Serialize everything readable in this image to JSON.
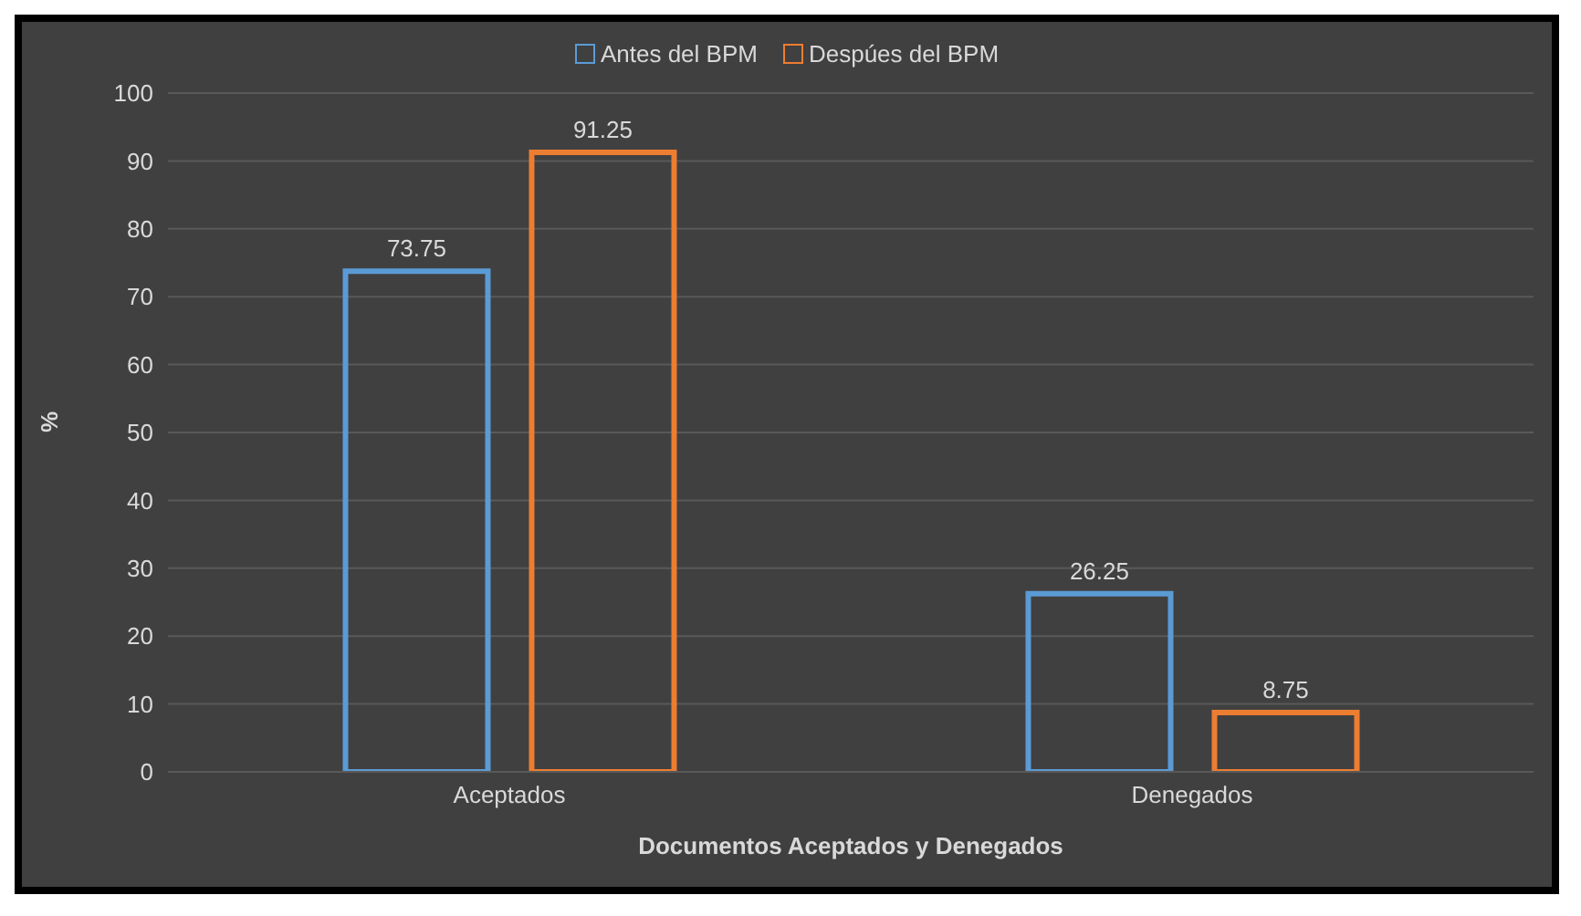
{
  "chart_data": {
    "type": "bar",
    "xlabel": "Documentos Aceptados y Denegados",
    "ylabel": "%",
    "categories": [
      "Aceptados",
      "Denegados"
    ],
    "series": [
      {
        "name": "Antes del BPM",
        "color": "#5b9bd5",
        "values": [
          73.75,
          26.25
        ]
      },
      {
        "name": "Despúes del BPM",
        "color": "#ed7d31",
        "values": [
          91.25,
          8.75
        ]
      }
    ],
    "ylim": [
      0,
      100
    ],
    "yticks": [
      0,
      10,
      20,
      30,
      40,
      50,
      60,
      70,
      80,
      90,
      100
    ],
    "grid": "y",
    "legend": "top",
    "data_labels": true
  }
}
